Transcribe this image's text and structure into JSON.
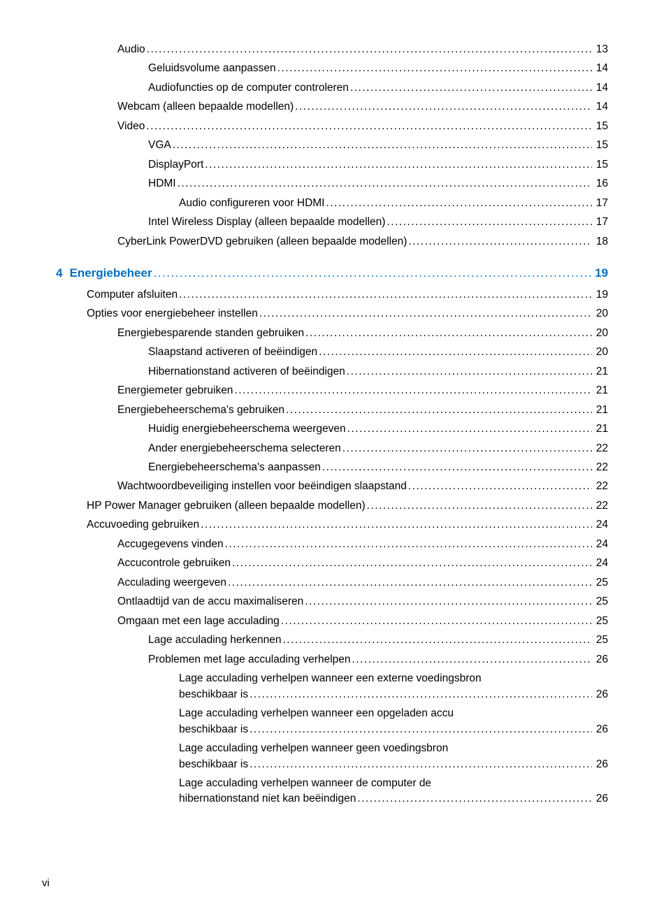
{
  "pageNumber": "vi",
  "colors": {
    "sectionAccent": "#0070c0",
    "text": "#000000",
    "background": "#ffffff"
  },
  "fontSizes": {
    "entry": 15.5,
    "section": 17,
    "pageNum": 15
  },
  "entries": [
    {
      "indent": 3,
      "label": "Audio",
      "page": "13"
    },
    {
      "indent": 4,
      "label": "Geluidsvolume aanpassen",
      "page": "14"
    },
    {
      "indent": 4,
      "label": "Audiofuncties op de computer controleren",
      "page": "14"
    },
    {
      "indent": 3,
      "label": "Webcam (alleen bepaalde modellen)",
      "page": "14"
    },
    {
      "indent": 3,
      "label": "Video",
      "page": "15"
    },
    {
      "indent": 4,
      "label": "VGA",
      "page": "15"
    },
    {
      "indent": 4,
      "label": "DisplayPort",
      "page": "15"
    },
    {
      "indent": 4,
      "label": "HDMI",
      "page": "16"
    },
    {
      "indent": 5,
      "label": "Audio configureren voor HDMI",
      "page": "17"
    },
    {
      "indent": 4,
      "label": "Intel Wireless Display (alleen bepaalde modellen)",
      "page": "17"
    },
    {
      "indent": 3,
      "label": "CyberLink PowerDVD gebruiken (alleen bepaalde modellen)",
      "page": "18"
    },
    {
      "type": "section",
      "indent": 1,
      "num": "4",
      "label": "Energiebeheer",
      "page": "19"
    },
    {
      "indent": 2,
      "label": "Computer afsluiten",
      "page": "19"
    },
    {
      "indent": 2,
      "label": "Opties voor energiebeheer instellen",
      "page": "20"
    },
    {
      "indent": 3,
      "label": "Energiebesparende standen gebruiken",
      "page": "20"
    },
    {
      "indent": 4,
      "label": "Slaapstand activeren of beëindigen",
      "page": "20"
    },
    {
      "indent": 4,
      "label": "Hibernationstand activeren of beëindigen",
      "page": "21"
    },
    {
      "indent": 3,
      "label": "Energiemeter gebruiken",
      "page": "21"
    },
    {
      "indent": 3,
      "label": "Energiebeheerschema's gebruiken",
      "page": "21"
    },
    {
      "indent": 4,
      "label": "Huidig energiebeheerschema weergeven",
      "page": "21"
    },
    {
      "indent": 4,
      "label": "Ander energiebeheerschema selecteren",
      "page": "22"
    },
    {
      "indent": 4,
      "label": "Energiebeheerschema's aanpassen",
      "page": "22"
    },
    {
      "indent": 3,
      "label": "Wachtwoordbeveiliging instellen voor beëindigen slaapstand",
      "page": "22"
    },
    {
      "indent": 2,
      "label": "HP Power Manager gebruiken (alleen bepaalde modellen)",
      "page": "22"
    },
    {
      "indent": 2,
      "label": "Accuvoeding gebruiken",
      "page": "24"
    },
    {
      "indent": 3,
      "label": "Accugegevens vinden",
      "page": "24"
    },
    {
      "indent": 3,
      "label": "Accucontrole gebruiken",
      "page": "24"
    },
    {
      "indent": 3,
      "label": "Acculading weergeven",
      "page": "25"
    },
    {
      "indent": 3,
      "label": "Ontlaadtijd van de accu maximaliseren",
      "page": "25"
    },
    {
      "indent": 3,
      "label": "Omgaan met een lage acculading",
      "page": "25"
    },
    {
      "indent": 4,
      "label": "Lage acculading herkennen",
      "page": "25"
    },
    {
      "indent": 4,
      "label": "Problemen met lage acculading verhelpen",
      "page": "26"
    },
    {
      "indent": 5,
      "labelLines": [
        "Lage acculading verhelpen wanneer een externe voedingsbron",
        "beschikbaar is"
      ],
      "page": "26"
    },
    {
      "indent": 5,
      "labelLines": [
        "Lage acculading verhelpen wanneer een opgeladen accu",
        "beschikbaar is"
      ],
      "page": "26"
    },
    {
      "indent": 5,
      "labelLines": [
        "Lage acculading verhelpen wanneer geen voedingsbron",
        "beschikbaar is"
      ],
      "page": "26"
    },
    {
      "indent": 5,
      "labelLines": [
        "Lage acculading verhelpen wanneer de computer de",
        "hibernationstand niet kan beëindigen"
      ],
      "page": "26"
    }
  ]
}
